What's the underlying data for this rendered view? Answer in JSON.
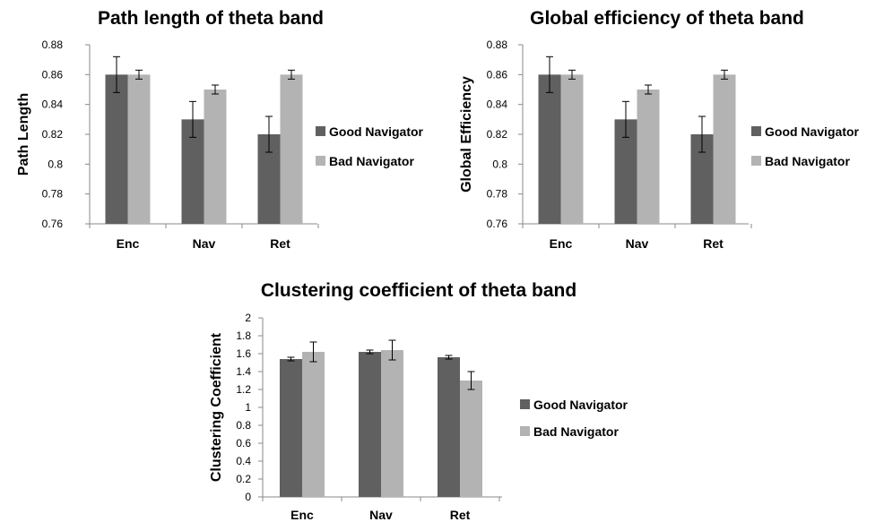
{
  "chart_data": [
    {
      "type": "bar",
      "title": "Path length of theta band",
      "xlabel": "",
      "ylabel": "Path Length",
      "categories": [
        "Enc",
        "Nav",
        "Ret"
      ],
      "ylim": [
        0.76,
        0.88
      ],
      "yticks": [
        "0.76",
        "0.78",
        "0.8",
        "0.82",
        "0.84",
        "0.86",
        "0.88"
      ],
      "series": [
        {
          "name": "Good Navigator",
          "color": "#606060",
          "values": [
            0.86,
            0.83,
            0.82
          ],
          "errors": [
            0.012,
            0.012,
            0.012
          ]
        },
        {
          "name": "Bad Navigator",
          "color": "#b3b3b3",
          "values": [
            0.86,
            0.85,
            0.86
          ],
          "errors": [
            0.003,
            0.003,
            0.003
          ]
        }
      ],
      "legend": "right"
    },
    {
      "type": "bar",
      "title": "Global efficiency of theta band",
      "xlabel": "",
      "ylabel": "Global Efficiency",
      "categories": [
        "Enc",
        "Nav",
        "Ret"
      ],
      "ylim": [
        0.76,
        0.88
      ],
      "yticks": [
        "0.76",
        "0.78",
        "0.8",
        "0.82",
        "0.84",
        "0.86",
        "0.88"
      ],
      "series": [
        {
          "name": "Good Navigator",
          "color": "#606060",
          "values": [
            0.86,
            0.83,
            0.82
          ],
          "errors": [
            0.012,
            0.012,
            0.012
          ]
        },
        {
          "name": "Bad Navigator",
          "color": "#b3b3b3",
          "values": [
            0.86,
            0.85,
            0.86
          ],
          "errors": [
            0.003,
            0.003,
            0.003
          ]
        }
      ],
      "legend": "right"
    },
    {
      "type": "bar",
      "title": "Clustering coefficient of theta band",
      "xlabel": "",
      "ylabel": "Clustering Coefficient",
      "categories": [
        "Enc",
        "Nav",
        "Ret"
      ],
      "ylim": [
        0,
        2
      ],
      "yticks": [
        "0",
        "0.2",
        "0.4",
        "0.6",
        "0.8",
        "1",
        "1.2",
        "1.4",
        "1.6",
        "1.8",
        "2"
      ],
      "series": [
        {
          "name": "Good Navigator",
          "color": "#606060",
          "values": [
            1.54,
            1.62,
            1.56
          ],
          "errors": [
            0.02,
            0.02,
            0.02
          ]
        },
        {
          "name": "Bad Navigator",
          "color": "#b3b3b3",
          "values": [
            1.62,
            1.64,
            1.3
          ],
          "errors": [
            0.11,
            0.11,
            0.1
          ]
        }
      ],
      "legend": "right"
    }
  ]
}
